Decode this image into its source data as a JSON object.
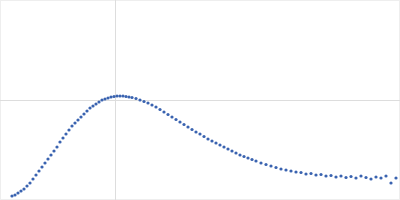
{
  "chart_data": {
    "type": "scatter",
    "color": "#3a63b0",
    "marker": "circle",
    "grid": true,
    "tick_labels": false,
    "xlim": [
      0,
      400
    ],
    "ylim": [
      0,
      200
    ],
    "xticks": [
      115
    ],
    "yticks": [
      100
    ],
    "x": [
      12,
      15,
      18,
      21,
      24,
      27,
      30,
      33,
      36,
      39,
      42,
      45,
      48,
      51,
      54,
      57,
      60,
      63,
      66,
      69,
      72,
      75,
      78,
      81,
      84,
      87,
      90,
      93,
      96,
      99,
      102,
      105,
      108,
      111,
      114,
      117,
      120,
      123,
      126,
      129,
      132,
      136,
      140,
      144,
      148,
      152,
      156,
      160,
      164,
      168,
      172,
      176,
      180,
      184,
      188,
      192,
      196,
      200,
      204,
      208,
      212,
      216,
      220,
      224,
      228,
      232,
      236,
      240,
      244,
      248,
      252,
      256,
      261,
      266,
      271,
      276,
      281,
      286,
      291,
      296,
      301,
      306,
      311,
      316,
      321,
      326,
      331,
      336,
      341,
      346,
      351,
      356,
      361,
      366,
      371,
      376,
      381,
      386,
      391,
      396
    ],
    "values": [
      4,
      5,
      7,
      9,
      11,
      14,
      17,
      21,
      25,
      29,
      33,
      37,
      41,
      45,
      49,
      53,
      58,
      62,
      66,
      70,
      74,
      77,
      80,
      83,
      86,
      89,
      92,
      94,
      96,
      98,
      100,
      101,
      102,
      103,
      103.5,
      104,
      104,
      104,
      103.5,
      103,
      102.5,
      101.5,
      100,
      98.5,
      97,
      95,
      93,
      90.5,
      88,
      85.5,
      83,
      80.5,
      78,
      75.5,
      73,
      70.5,
      68,
      66,
      63.5,
      61,
      59,
      57,
      55,
      53,
      51,
      49,
      47,
      45,
      43.5,
      42,
      40.5,
      39,
      37,
      35.5,
      34,
      32.5,
      31,
      30,
      29,
      28,
      27.5,
      26,
      26.5,
      25,
      25.5,
      24,
      24.5,
      23,
      24,
      22.5,
      23.5,
      22,
      24,
      22.5,
      21,
      23,
      22,
      24,
      17,
      22
    ]
  }
}
